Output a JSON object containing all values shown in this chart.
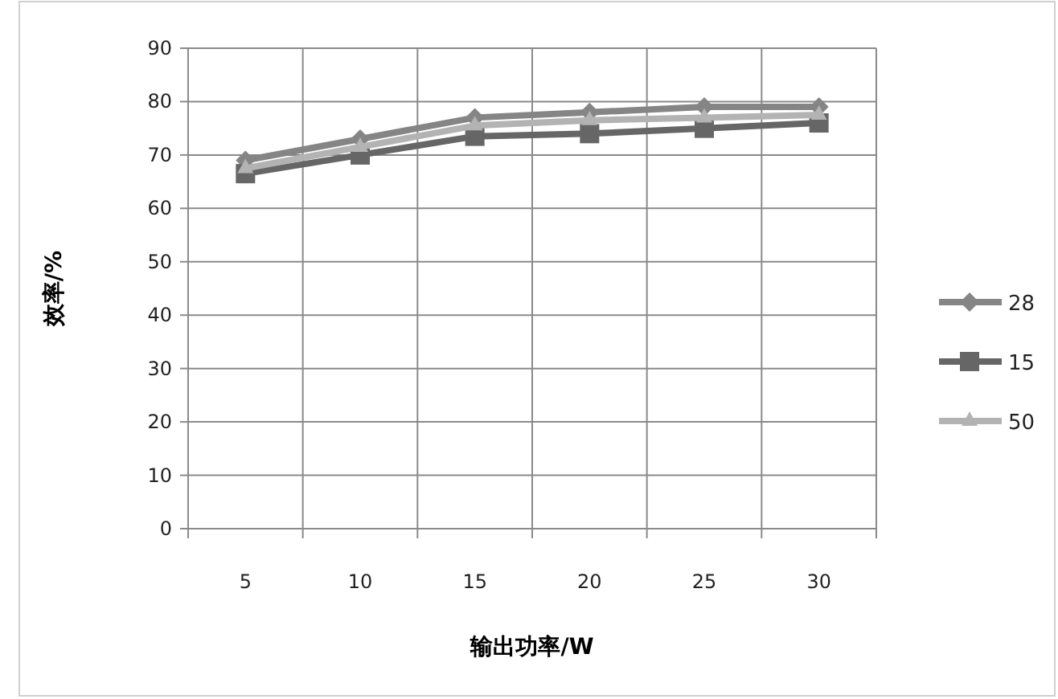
{
  "chart_data": {
    "type": "line",
    "xlabel": "输出功率/W",
    "ylabel": "效率/%",
    "categories": [
      "5",
      "10",
      "15",
      "20",
      "25",
      "30"
    ],
    "series": [
      {
        "name": "28",
        "color": "#858585",
        "marker": "diamond",
        "values": [
          69,
          73,
          77,
          78,
          79,
          79
        ]
      },
      {
        "name": "15",
        "color": "#666666",
        "marker": "square",
        "values": [
          66.5,
          70,
          73.5,
          74,
          75,
          76
        ]
      },
      {
        "name": "50",
        "color": "#b3b3b3",
        "marker": "triangle",
        "values": [
          67.5,
          71.5,
          75.5,
          76.5,
          77,
          77.5
        ]
      }
    ],
    "ylim": [
      0,
      90
    ],
    "yticks": [
      0,
      10,
      20,
      30,
      40,
      50,
      60,
      70,
      80,
      90
    ],
    "grid": true,
    "legend": "right"
  }
}
